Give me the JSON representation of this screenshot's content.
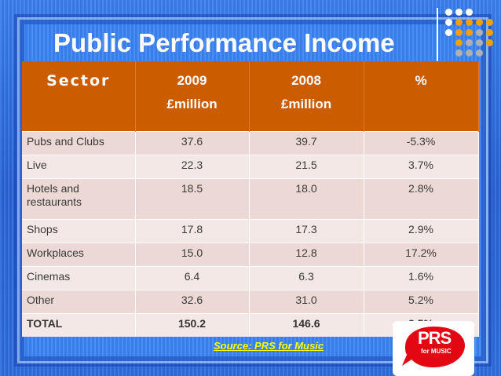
{
  "slide": {
    "title": "Public Performance Income",
    "source": "Source: PRS for Music",
    "logo": {
      "main": "PRS",
      "sub": "for MUSIC"
    }
  },
  "table": {
    "headers": [
      {
        "line1": "Sector",
        "line2": ""
      },
      {
        "line1": "2009",
        "line2": "£million"
      },
      {
        "line1": "2008",
        "line2": "£million"
      },
      {
        "line1": "%",
        "line2": ""
      }
    ],
    "rows": [
      {
        "sector": "Pubs and Clubs",
        "y2009": "37.6",
        "y2008": "39.7",
        "pct": "-5.3%"
      },
      {
        "sector": "Live",
        "y2009": "22.3",
        "y2008": "21.5",
        "pct": "3.7%"
      },
      {
        "sector": "Hotels and restaurants",
        "y2009": "18.5",
        "y2008": "18.0",
        "pct": "2.8%"
      },
      {
        "sector": "Shops",
        "y2009": "17.8",
        "y2008": "17.3",
        "pct": "2.9%"
      },
      {
        "sector": "Workplaces",
        "y2009": "15.0",
        "y2008": "12.8",
        "pct": "17.2%"
      },
      {
        "sector": "Cinemas",
        "y2009": "6.4",
        "y2008": "6.3",
        "pct": "1.6%"
      },
      {
        "sector": "Other",
        "y2009": "32.6",
        "y2008": "31.0",
        "pct": "5.2%"
      },
      {
        "sector": "TOTAL",
        "y2009": "150.2",
        "y2008": "146.6",
        "pct": "2.5%"
      }
    ]
  },
  "colors": {
    "background": "#2f6ee0",
    "header": "#cc5c00",
    "row_odd": "#ecd8d5",
    "row_even": "#f3e8e6",
    "title_text": "#ffffff",
    "source_text": "#ffff00",
    "logo_red": "#e30613",
    "dots_orange": "#f5a000",
    "dots_grey": "#b0b0b0"
  }
}
